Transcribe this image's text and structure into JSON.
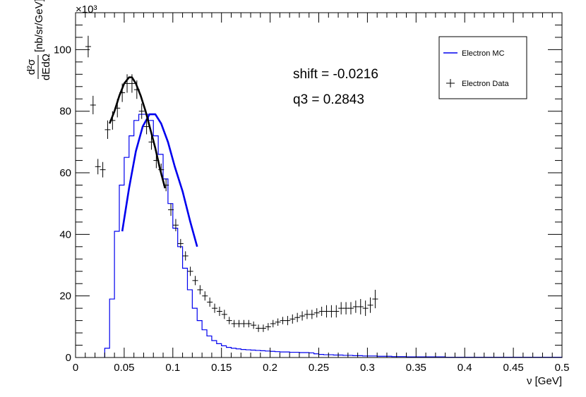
{
  "chart_data": {
    "type": "line",
    "xlabel": "ν [GeV]",
    "ylabel_numerator": "d²σ",
    "ylabel_denominator": "dEdΩ",
    "ylabel_units": "[nb/sr/GeV]",
    "y_multiplier": "×10³",
    "xlim": [
      0,
      0.5
    ],
    "ylim": [
      0,
      112
    ],
    "x_ticks": [
      0,
      0.05,
      0.1,
      0.15,
      0.2,
      0.25,
      0.3,
      0.35,
      0.4,
      0.45,
      0.5
    ],
    "x_tick_labels": [
      "0",
      "0.05",
      "0.1",
      "0.15",
      "0.2",
      "0.25",
      "0.3",
      "0.35",
      "0.4",
      "0.45",
      "0.5"
    ],
    "y_ticks": [
      0,
      20,
      40,
      60,
      80,
      100
    ],
    "y_tick_labels": [
      "0",
      "20",
      "40",
      "60",
      "80",
      "100"
    ],
    "annotations": [
      "shift = -0.0216",
      "q3 = 0.2843"
    ],
    "legend": {
      "placement": "top-right",
      "entries": [
        "Electron MC",
        "Electron Data"
      ]
    },
    "colors": {
      "mc": "#0000ee",
      "data": "#000000",
      "data_fit": "#000000"
    },
    "mc_histogram": {
      "name": "Electron MC",
      "bin_width": 0.005,
      "x_start": 0.03,
      "values": [
        3,
        19,
        41,
        56,
        65,
        72,
        77,
        79,
        79,
        77,
        72,
        66,
        58,
        50,
        42,
        36,
        29,
        22,
        16,
        12,
        9,
        7,
        5.5,
        4.5,
        3.8,
        3.3,
        3.0,
        2.8,
        2.6,
        2.5,
        2.4,
        2.3,
        2.2,
        2.1,
        2.0,
        1.9,
        1.8,
        1.8,
        1.7,
        1.7,
        1.6,
        1.6,
        1.5,
        1.2,
        1.0,
        0.9,
        0.9,
        0.8,
        0.8,
        0.7,
        0.7,
        0.6,
        0.6,
        0.5,
        0.5,
        0.5,
        0.4,
        0.4,
        0.4,
        0.3,
        0.3,
        0.3,
        0.2,
        0.2,
        0.2,
        0.2,
        0.2,
        0.2,
        0.2,
        0.2,
        0.1,
        0.1,
        0.1,
        0.1,
        0.1,
        0.1,
        0.1,
        0.1,
        0.1,
        0.1,
        0.1,
        0.1,
        0.1,
        0.1,
        0.1,
        0.1,
        0.1,
        0.1,
        0.1,
        0.1,
        0.1,
        0.1,
        0.1,
        0.1
      ]
    },
    "mc_fit": {
      "x": [
        0.048,
        0.055,
        0.062,
        0.069,
        0.076,
        0.082,
        0.088,
        0.095,
        0.102,
        0.11,
        0.118,
        0.125
      ],
      "y": [
        41,
        55,
        67,
        75,
        79,
        79,
        76,
        70,
        62,
        54,
        44,
        36
      ]
    },
    "data_fit": {
      "x": [
        0.035,
        0.04,
        0.045,
        0.05,
        0.055,
        0.058,
        0.062,
        0.067,
        0.072,
        0.077,
        0.082,
        0.087,
        0.092
      ],
      "y": [
        76,
        80,
        85,
        89,
        91,
        91,
        89,
        85,
        80,
        74,
        68,
        61,
        55
      ]
    },
    "data_points": {
      "name": "Electron Data",
      "x": [
        0.013,
        0.018,
        0.023,
        0.028,
        0.033,
        0.038,
        0.043,
        0.048,
        0.053,
        0.058,
        0.063,
        0.068,
        0.073,
        0.078,
        0.083,
        0.088,
        0.093,
        0.098,
        0.103,
        0.108,
        0.113,
        0.118,
        0.123,
        0.128,
        0.133,
        0.138,
        0.143,
        0.148,
        0.153,
        0.158,
        0.163,
        0.168,
        0.173,
        0.178,
        0.183,
        0.188,
        0.193,
        0.198,
        0.203,
        0.208,
        0.213,
        0.218,
        0.223,
        0.228,
        0.233,
        0.238,
        0.243,
        0.248,
        0.253,
        0.258,
        0.263,
        0.268,
        0.273,
        0.278,
        0.283,
        0.288,
        0.293,
        0.298,
        0.303,
        0.308
      ],
      "y": [
        101,
        82,
        62,
        61,
        74,
        77,
        81,
        86,
        89,
        89,
        87,
        80,
        75,
        70,
        64,
        61,
        56,
        48,
        43,
        37,
        33,
        28,
        25,
        22,
        20,
        18,
        16,
        15,
        14,
        12,
        11,
        11,
        11,
        11,
        10.5,
        9.5,
        9.5,
        10,
        11,
        11.5,
        12,
        12,
        12.5,
        13,
        13.5,
        14,
        14,
        14.5,
        15,
        15,
        15,
        15,
        16,
        16,
        16,
        16.5,
        16.5,
        16,
        17,
        19
      ],
      "yerr": [
        3.5,
        3,
        2.5,
        2.5,
        3,
        3,
        3,
        3,
        3,
        3,
        3,
        2.5,
        2.5,
        2.5,
        2.5,
        2,
        2,
        2,
        2,
        1.5,
        1.5,
        1.5,
        1.5,
        1.5,
        1.5,
        1.5,
        1.5,
        1.5,
        1.5,
        1.2,
        1.2,
        1.2,
        1.2,
        1.2,
        1.2,
        1.2,
        1.2,
        1.2,
        1.2,
        1.2,
        1.2,
        1.5,
        1.5,
        1.5,
        1.5,
        1.5,
        1.5,
        1.5,
        1.5,
        2,
        2,
        2,
        2,
        2,
        2,
        2,
        2.5,
        2.5,
        2.5,
        3
      ]
    }
  }
}
